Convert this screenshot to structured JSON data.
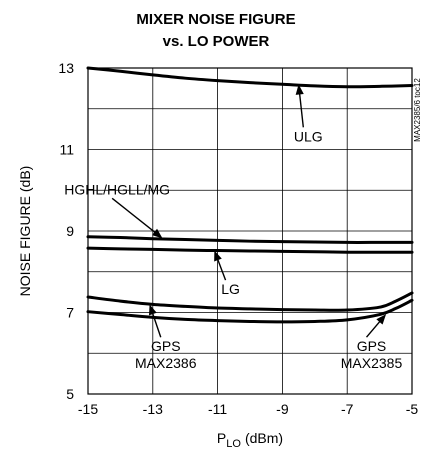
{
  "chart_data": {
    "type": "line",
    "title_line1": "MIXER NOISE FIGURE",
    "title_line2": "vs. LO POWER",
    "xlabel": "P",
    "xlabel_sub": "LO",
    "xlabel_unit": "(dBm)",
    "ylabel": "NOISE FIGURE (dB)",
    "xlim": [
      -15,
      -5
    ],
    "ylim": [
      5,
      13
    ],
    "x_ticks": [
      -15,
      -13,
      -11,
      -9,
      -7,
      -5
    ],
    "x_tick_labels": [
      "-15",
      "-13",
      "-11",
      "-9",
      "-7",
      "-5"
    ],
    "y_ticks": [
      5,
      7,
      9,
      11,
      13
    ],
    "y_tick_labels": [
      "5",
      "7",
      "9",
      "11",
      "13"
    ],
    "grid": true,
    "part_number": "MAX2385/6 toc12",
    "line_color": "#000000",
    "series": [
      {
        "x": [
          -15,
          -14,
          -13,
          -12,
          -11,
          -10,
          -9,
          -8,
          -7,
          -6,
          -5
        ],
        "y": [
          13.0,
          12.92,
          12.83,
          12.75,
          12.69,
          12.64,
          12.6,
          12.56,
          12.54,
          12.55,
          12.57
        ]
      },
      {
        "x": [
          -15,
          -14,
          -13,
          -12,
          -11,
          -10,
          -9,
          -8,
          -7,
          -6,
          -5
        ],
        "y": [
          8.86,
          8.84,
          8.81,
          8.79,
          8.77,
          8.75,
          8.74,
          8.73,
          8.72,
          8.72,
          8.72
        ]
      },
      {
        "x": [
          -15,
          -14,
          -13,
          -12,
          -11,
          -10,
          -9,
          -8,
          -7,
          -6,
          -5
        ],
        "y": [
          8.58,
          8.56,
          8.55,
          8.53,
          8.52,
          8.51,
          8.5,
          8.49,
          8.48,
          8.48,
          8.48
        ]
      },
      {
        "x": [
          -15,
          -14,
          -13,
          -12,
          -11,
          -10,
          -9,
          -8,
          -7,
          -6,
          -5.5,
          -5
        ],
        "y": [
          7.38,
          7.28,
          7.2,
          7.15,
          7.11,
          7.09,
          7.07,
          7.06,
          7.06,
          7.13,
          7.28,
          7.48
        ]
      },
      {
        "x": [
          -15,
          -14,
          -13,
          -12,
          -11,
          -10,
          -9,
          -8,
          -7,
          -6,
          -5.5,
          -5
        ],
        "y": [
          7.02,
          6.95,
          6.88,
          6.83,
          6.8,
          6.78,
          6.77,
          6.78,
          6.82,
          6.95,
          7.1,
          7.3
        ]
      }
    ],
    "annotations": [
      {
        "text": "ULG",
        "at": [
          -8.2,
          11.2
        ],
        "arrow_to": [
          -8.5,
          12.6
        ]
      },
      {
        "text": "HGHL/HGLL/MG",
        "at": [
          -14.1,
          9.9
        ],
        "arrow_to": [
          -12.7,
          8.82
        ]
      },
      {
        "text": "LG",
        "at": [
          -10.6,
          7.45
        ],
        "arrow_to": [
          -11.1,
          8.52
        ]
      },
      {
        "text": "GPS",
        "text2": "MAX2386",
        "at": [
          -12.6,
          6.05
        ],
        "arrow_to": [
          -13.1,
          7.2
        ]
      },
      {
        "text": "GPS",
        "text2": "MAX2385",
        "at": [
          -6.25,
          6.05
        ],
        "arrow_to": [
          -5.8,
          6.96
        ]
      }
    ]
  }
}
